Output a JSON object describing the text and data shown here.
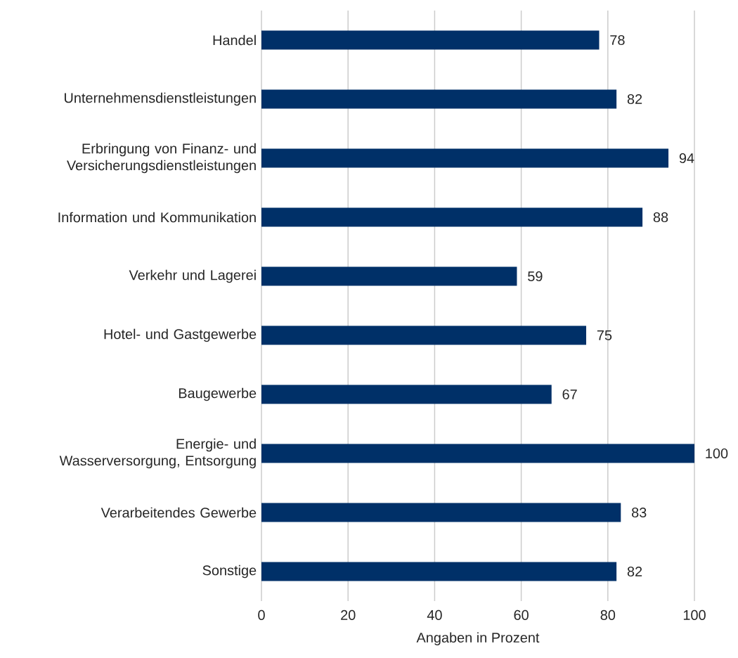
{
  "chart_data": {
    "type": "bar",
    "orientation": "horizontal",
    "categories": [
      "Handel",
      "Unternehmensdienstleistungen",
      "Erbringung von Finanz- und Versicherungsdienstleistungen",
      "Information und Kommunikation",
      "Verkehr und Lagerei",
      "Hotel- und Gastgewerbe",
      "Baugewerbe",
      "Energie- und Wasserversorgung, Entsorgung",
      "Verarbeitendes Gewerbe",
      "Sonstige"
    ],
    "values": [
      78,
      82,
      94,
      88,
      59,
      75,
      67,
      100,
      83,
      82
    ],
    "color": "#003068",
    "xlim": [
      0,
      100
    ],
    "xticks": [
      0,
      20,
      40,
      60,
      80,
      100
    ],
    "xlabel": "Angaben in Prozent",
    "grid": "x",
    "data_labels": true
  }
}
